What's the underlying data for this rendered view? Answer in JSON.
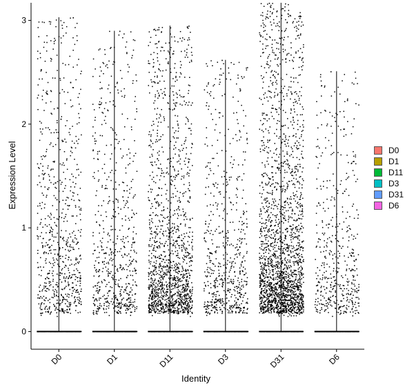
{
  "chart_data": {
    "type": "scatter",
    "subtype": "violin-jitter",
    "title": "",
    "xlabel": "Identity",
    "ylabel": "Expression Level",
    "ylim": [
      -0.17,
      3.17
    ],
    "yticks": [
      0,
      1,
      2,
      3
    ],
    "categories": [
      "D0",
      "D1",
      "D11",
      "D3",
      "D31",
      "D6"
    ],
    "legend_position": "right",
    "grid": false,
    "series": [
      {
        "name": "D0",
        "color": "#F8766D",
        "max": 3.03,
        "zero_fraction": 0.6,
        "nonzero_points": 750,
        "mean_nonzero": 1.25
      },
      {
        "name": "D1",
        "color": "#B79F00",
        "max": 2.9,
        "zero_fraction": 0.65,
        "nonzero_points": 650,
        "mean_nonzero": 0.95
      },
      {
        "name": "D11",
        "color": "#00BA38",
        "max": 2.95,
        "zero_fraction": 0.55,
        "nonzero_points": 1500,
        "mean_nonzero": 0.6
      },
      {
        "name": "D3",
        "color": "#00BFC4",
        "max": 2.62,
        "zero_fraction": 0.65,
        "nonzero_points": 650,
        "mean_nonzero": 0.6
      },
      {
        "name": "D31",
        "color": "#619CFF",
        "max": 3.17,
        "zero_fraction": 0.45,
        "nonzero_points": 2200,
        "mean_nonzero": 0.75
      },
      {
        "name": "D6",
        "color": "#F564E3",
        "max": 2.51,
        "zero_fraction": 0.7,
        "nonzero_points": 500,
        "mean_nonzero": 0.75
      }
    ]
  }
}
